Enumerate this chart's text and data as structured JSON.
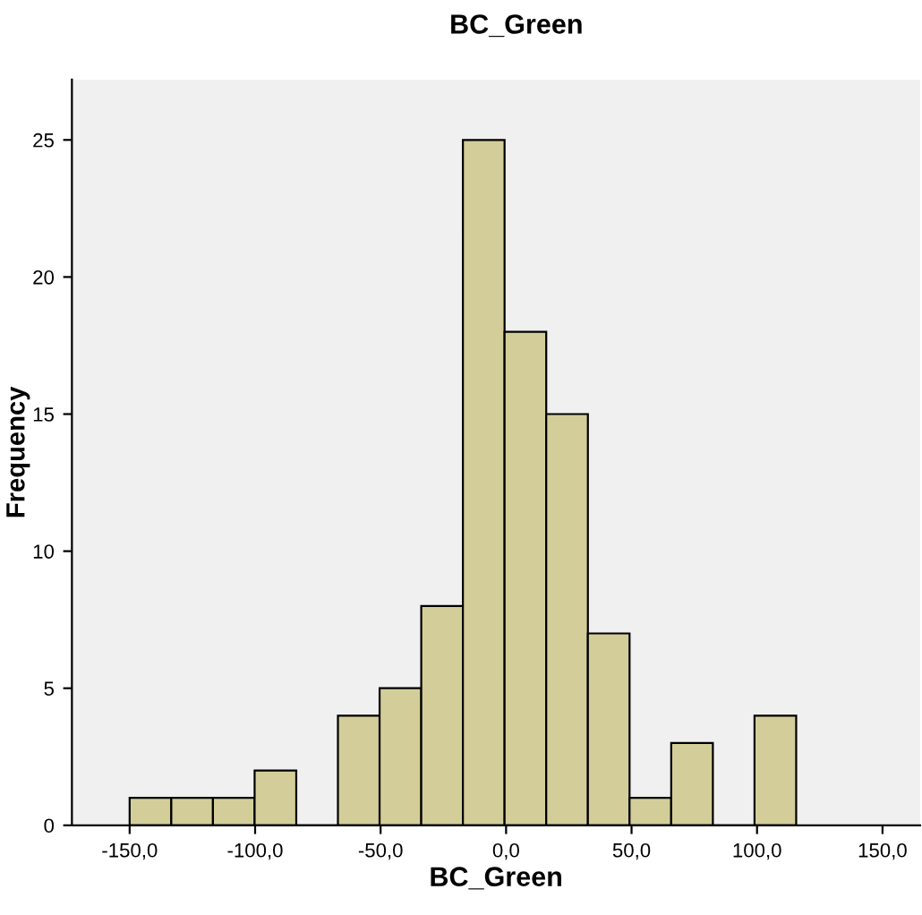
{
  "chart_data": {
    "type": "histogram",
    "title": "BC_Green",
    "xlabel": "BC_Green",
    "ylabel": "Frequency",
    "bins": [
      -150,
      -133.4,
      -116.8,
      -100.2,
      -83.6,
      -67,
      -50.4,
      -33.8,
      -17.2,
      -0.6,
      16,
      32.6,
      49.2,
      65.8,
      82.4,
      99,
      115.6
    ],
    "values": [
      1,
      1,
      1,
      2,
      0,
      4,
      5,
      8,
      25,
      18,
      15,
      7,
      1,
      3,
      0,
      4
    ],
    "color": "#d3ce99",
    "xlim": [
      -173,
      165
    ],
    "xticks": [
      {
        "value": -150,
        "label": "-150,0"
      },
      {
        "value": -100,
        "label": "-100,0"
      },
      {
        "value": -50,
        "label": "-50,0"
      },
      {
        "value": 0,
        "label": "0,0"
      },
      {
        "value": 50,
        "label": "50,0"
      },
      {
        "value": 100,
        "label": "100,0"
      },
      {
        "value": 150,
        "label": "150,0"
      }
    ],
    "ylim": [
      0,
      27.2
    ],
    "yticks": [
      0,
      5,
      10,
      15,
      20,
      25
    ],
    "grid": false,
    "legend": false
  }
}
